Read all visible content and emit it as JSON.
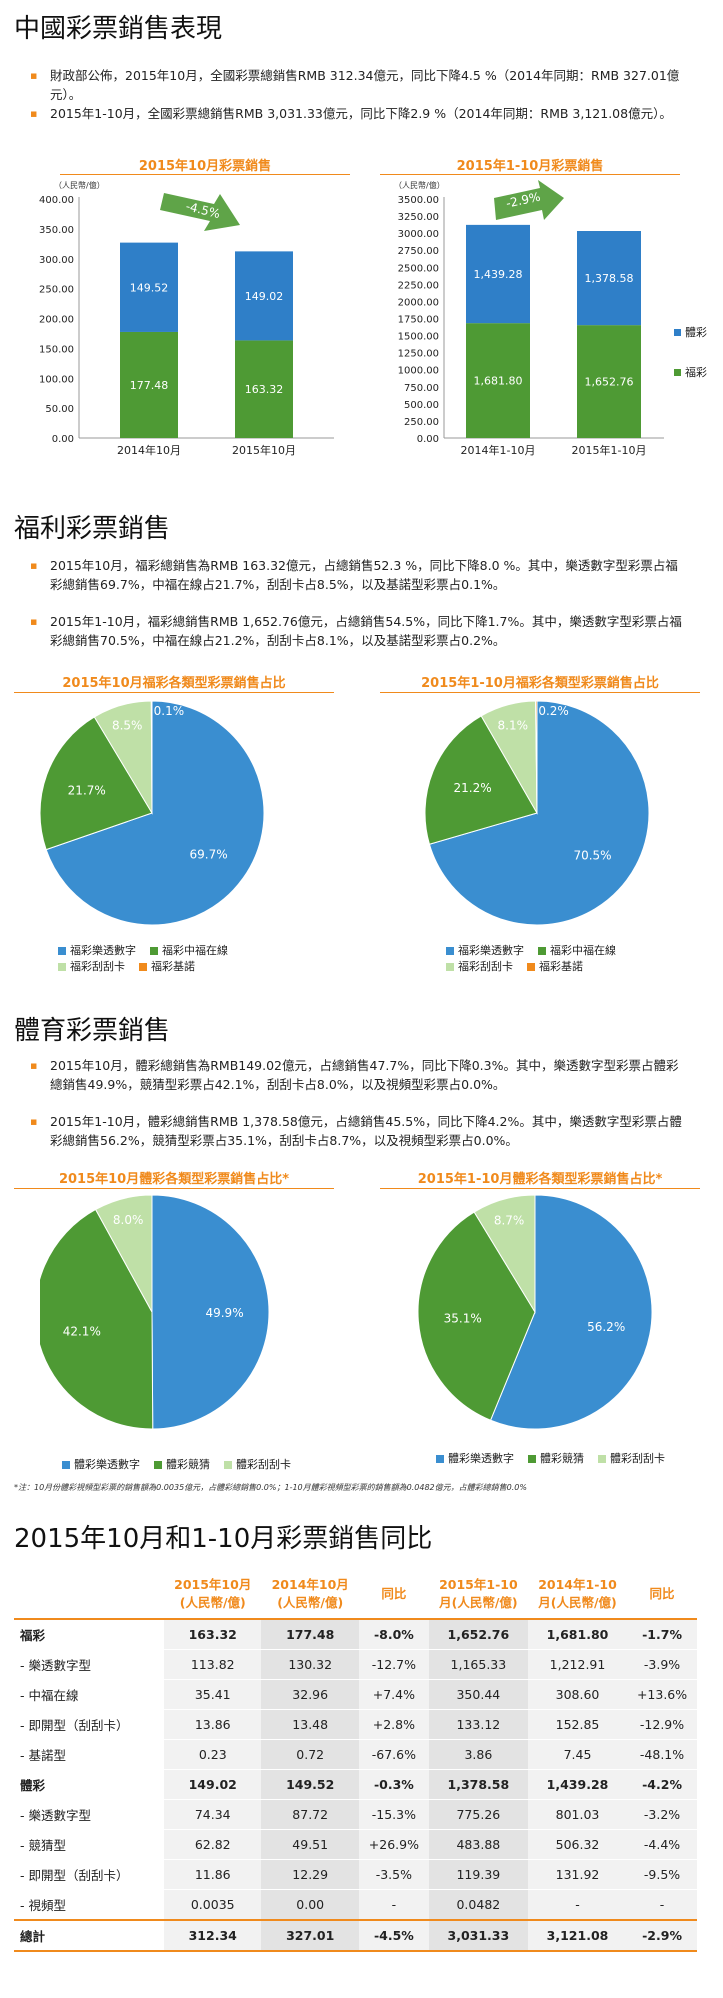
{
  "s1": {
    "title": "中國彩票銷售表現",
    "b1": "財政部公佈，2015年10月，全國彩票總銷售RMB 312.34億元，同比下降4.5 %（2014年同期：RMB 327.01億元）。",
    "b2": "2015年1-10月，全國彩票總銷售RMB 3,031.33億元，同比下降2.9 %（2014年同期：RMB 3,121.08億元）。"
  },
  "s2": {
    "title": "福利彩票銷售",
    "b1": "2015年10月，福彩總銷售為RMB 163.32億元，占總銷售52.3 %，同比下降8.0 %。其中，樂透數字型彩票占福彩總銷售69.7%，中福在線占21.7%，刮刮卡占8.5%，以及基諾型彩票占0.1%。",
    "b2": "2015年1-10月，福彩總銷售RMB 1,652.76億元，占總銷售54.5%，同比下降1.7%。其中，樂透數字型彩票占福彩總銷售70.5%，中福在線占21.2%，刮刮卡占8.1%，以及基諾型彩票占0.2%。"
  },
  "s3": {
    "title": "體育彩票銷售",
    "b1": "2015年10月，體彩總銷售為RMB149.02億元，占總銷售47.7%，同比下降0.3%。其中，樂透數字型彩票占體彩總銷售49.9%，競猜型彩票占42.1%，刮刮卡占8.0%，以及視頻型彩票占0.0%。",
    "b2": "2015年1-10月，體彩總銷售RMB 1,378.58億元，占總銷售45.5%，同比下降4.2%。其中，樂透數字型彩票占體彩總銷售56.2%，競猜型彩票占35.1%，刮刮卡占8.7%，以及視頻型彩票占0.0%。"
  },
  "footnote": "*注：10月份體彩視頻型彩票的銷售額為0.0035億元，占體彩總銷售0.0%；1-10月體彩視頻型彩票的銷售額為0.0482億元，占體彩總銷售0.0%",
  "s4": {
    "title": "2015年10月和1-10月彩票銷售同比"
  },
  "chart_data": [
    {
      "type": "bar",
      "stacked": true,
      "title": "2015年10月彩票銷售",
      "ylabel": "（人民幣/億）",
      "categories": [
        "2014年10月",
        "2015年10月"
      ],
      "series": [
        {
          "name": "福彩",
          "values": [
            177.48,
            163.32
          ],
          "color": "#4e9a34"
        },
        {
          "name": "體彩",
          "values": [
            149.52,
            149.02
          ],
          "color": "#2f7fc8"
        }
      ],
      "ylim": [
        0,
        400
      ],
      "yticks": [
        "0.00",
        "50.00",
        "100.00",
        "150.00",
        "200.00",
        "250.00",
        "300.00",
        "350.00",
        "400.00"
      ],
      "annotation": "-4.5%"
    },
    {
      "type": "bar",
      "stacked": true,
      "title": "2015年1-10月彩票銷售",
      "ylabel": "（人民幣/億）",
      "categories": [
        "2014年1-10月",
        "2015年1-10月"
      ],
      "series": [
        {
          "name": "福彩",
          "values": [
            1681.8,
            1652.76
          ],
          "value_labels": [
            "1,681.80",
            "1,652.76"
          ],
          "color": "#4e9a34"
        },
        {
          "name": "體彩",
          "values": [
            1439.28,
            1378.58
          ],
          "value_labels": [
            "1,439.28",
            "1,378.58"
          ],
          "color": "#2f7fc8"
        }
      ],
      "ylim": [
        0,
        3500
      ],
      "yticks": [
        "0.00",
        "250.00",
        "500.00",
        "750.00",
        "1000.00",
        "1250.00",
        "1500.00",
        "1750.00",
        "2000.00",
        "2250.00",
        "2500.00",
        "2750.00",
        "3000.00",
        "3250.00",
        "3500.00"
      ],
      "annotation": "-2.9%",
      "legend": {
        "position": "right"
      }
    },
    {
      "type": "pie",
      "title": "2015年10月福彩各類型彩票銷售占比",
      "labels": [
        "福彩樂透數字",
        "福彩中福在線",
        "福彩刮刮卡",
        "福彩基諾"
      ],
      "values": [
        69.7,
        21.7,
        8.5,
        0.1
      ],
      "value_labels": [
        "69.7%",
        "21.7%",
        "8.5%",
        "0.1%"
      ],
      "colors": [
        "#3a8ed0",
        "#4e9a34",
        "#bfe0a7",
        "#f08a1c"
      ],
      "legend": {
        "position": "bottom"
      }
    },
    {
      "type": "pie",
      "title": "2015年1-10月福彩各類型彩票銷售占比",
      "labels": [
        "福彩樂透數字",
        "福彩中福在線",
        "福彩刮刮卡",
        "福彩基諾"
      ],
      "values": [
        70.5,
        21.2,
        8.1,
        0.2
      ],
      "value_labels": [
        "70.5%",
        "21.2%",
        "8.1%",
        "0.2%"
      ],
      "colors": [
        "#3a8ed0",
        "#4e9a34",
        "#bfe0a7",
        "#f08a1c"
      ],
      "legend": {
        "position": "bottom"
      }
    },
    {
      "type": "pie",
      "title": "2015年10月體彩各類型彩票銷售占比*",
      "labels": [
        "體彩樂透數字",
        "體彩競猜",
        "體彩刮刮卡"
      ],
      "values": [
        49.9,
        42.1,
        8.0
      ],
      "value_labels": [
        "49.9%",
        "42.1%",
        "8.0%"
      ],
      "colors": [
        "#3a8ed0",
        "#4e9a34",
        "#bfe0a7"
      ],
      "legend": {
        "position": "bottom"
      }
    },
    {
      "type": "pie",
      "title": "2015年1-10月體彩各類型彩票銷售占比*",
      "labels": [
        "體彩樂透數字",
        "體彩競猜",
        "體彩刮刮卡"
      ],
      "values": [
        56.2,
        35.1,
        8.7
      ],
      "value_labels": [
        "56.2%",
        "35.1%",
        "8.7%"
      ],
      "colors": [
        "#3a8ed0",
        "#4e9a34",
        "#bfe0a7"
      ],
      "legend": {
        "position": "bottom"
      }
    },
    {
      "type": "table",
      "headers": [
        "",
        "2015年10月\n(人民幣/億)",
        "2014年10月\n(人民幣/億)",
        "同比",
        "2015年1-10\n月(人民幣/億)",
        "2014年1-10\n月(人民幣/億)",
        "同比"
      ],
      "rows": [
        [
          "福彩",
          "163.32",
          "177.48",
          "-8.0%",
          "1,652.76",
          "1,681.80",
          "-1.7%"
        ],
        [
          "- 樂透數字型",
          "113.82",
          "130.32",
          "-12.7%",
          "1,165.33",
          "1,212.91",
          "-3.9%"
        ],
        [
          "- 中福在線",
          "35.41",
          "32.96",
          "+7.4%",
          "350.44",
          "308.60",
          "+13.6%"
        ],
        [
          "- 即開型（刮刮卡）",
          "13.86",
          "13.48",
          "+2.8%",
          "133.12",
          "152.85",
          "-12.9%"
        ],
        [
          "- 基諾型",
          "0.23",
          "0.72",
          "-67.6%",
          "3.86",
          "7.45",
          "-48.1%"
        ],
        [
          "體彩",
          "149.02",
          "149.52",
          "-0.3%",
          "1,378.58",
          "1,439.28",
          "-4.2%"
        ],
        [
          "- 樂透數字型",
          "74.34",
          "87.72",
          "-15.3%",
          "775.26",
          "801.03",
          "-3.2%"
        ],
        [
          "- 競猜型",
          "62.82",
          "49.51",
          "+26.9%",
          "483.88",
          "506.32",
          "-4.4%"
        ],
        [
          "- 即開型（刮刮卡）",
          "11.86",
          "12.29",
          "-3.5%",
          "119.39",
          "131.92",
          "-9.5%"
        ],
        [
          "- 視頻型",
          "0.0035",
          "0.00",
          "-",
          "0.0482",
          "-",
          "-"
        ],
        [
          "總計",
          "312.34",
          "327.01",
          "-4.5%",
          "3,031.33",
          "3,121.08",
          "-2.9%"
        ]
      ],
      "bold_rows": [
        0,
        5,
        10
      ]
    }
  ]
}
